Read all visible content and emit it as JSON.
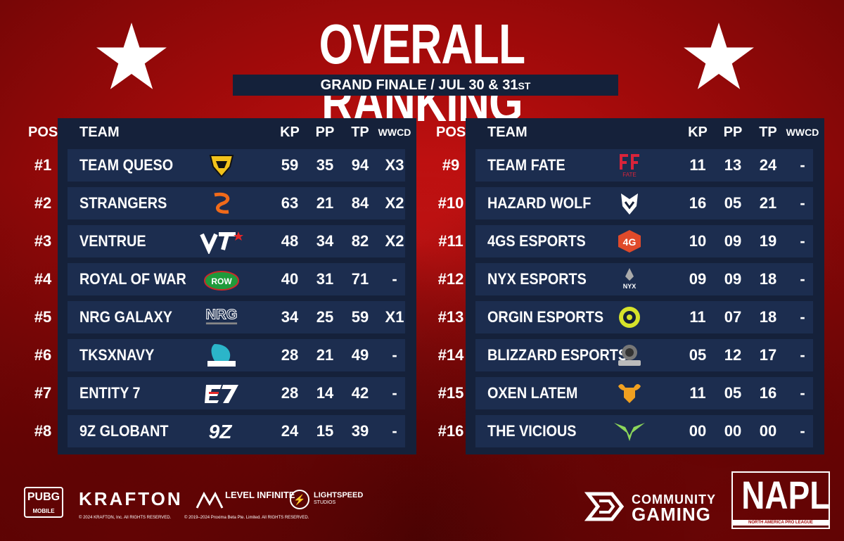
{
  "header": {
    "title": "OVERALL RANKING",
    "subtitle_main": "GRAND FINALE / JUL 30 & 31",
    "subtitle_sup": "ST"
  },
  "columns": {
    "pos": "POS",
    "team": "TEAM",
    "kp": "KP",
    "pp": "PP",
    "tp": "TP",
    "wwcd": "WWCD"
  },
  "left_table": [
    {
      "pos": "#1",
      "team": "TEAM QUESO",
      "logo": "team-queso-logo",
      "kp": "59",
      "pp": "35",
      "tp": "94",
      "wwcd": "X3"
    },
    {
      "pos": "#2",
      "team": "STRANGERS",
      "logo": "strangers-logo",
      "kp": "63",
      "pp": "21",
      "tp": "84",
      "wwcd": "X2"
    },
    {
      "pos": "#3",
      "team": "VENTRUE",
      "logo": "ventrue-logo",
      "kp": "48",
      "pp": "34",
      "tp": "82",
      "wwcd": "X2"
    },
    {
      "pos": "#4",
      "team": "ROYAL OF WAR",
      "logo": "royal-of-war-logo",
      "kp": "40",
      "pp": "31",
      "tp": "71",
      "wwcd": "-"
    },
    {
      "pos": "#5",
      "team": "NRG GALAXY",
      "logo": "nrg-galaxy-logo",
      "kp": "34",
      "pp": "25",
      "tp": "59",
      "wwcd": "X1"
    },
    {
      "pos": "#6",
      "team": "TKSXNAVY",
      "logo": "tksxnavy-logo",
      "kp": "28",
      "pp": "21",
      "tp": "49",
      "wwcd": "-"
    },
    {
      "pos": "#7",
      "team": "ENTITY 7",
      "logo": "entity-7-logo",
      "kp": "28",
      "pp": "14",
      "tp": "42",
      "wwcd": "-"
    },
    {
      "pos": "#8",
      "team": "9Z GLOBANT",
      "logo": "9z-globant-logo",
      "kp": "24",
      "pp": "15",
      "tp": "39",
      "wwcd": "-"
    }
  ],
  "right_table": [
    {
      "pos": "#9",
      "team": "TEAM FATE",
      "logo": "team-fate-logo",
      "kp": "11",
      "pp": "13",
      "tp": "24",
      "wwcd": "-"
    },
    {
      "pos": "#10",
      "team": "HAZARD WOLF",
      "logo": "hazard-wolf-logo",
      "kp": "16",
      "pp": "05",
      "tp": "21",
      "wwcd": "-"
    },
    {
      "pos": "#11",
      "team": "4GS ESPORTS",
      "logo": "4gs-esports-logo",
      "kp": "10",
      "pp": "09",
      "tp": "19",
      "wwcd": "-"
    },
    {
      "pos": "#12",
      "team": "NYX ESPORTS",
      "logo": "nyx-esports-logo",
      "kp": "09",
      "pp": "09",
      "tp": "18",
      "wwcd": "-"
    },
    {
      "pos": "#13",
      "team": "ORGIN ESPORTS",
      "logo": "orgin-esports-logo",
      "kp": "11",
      "pp": "07",
      "tp": "18",
      "wwcd": "-"
    },
    {
      "pos": "#14",
      "team": "BLIZZARD ESPORTS",
      "logo": "blizzard-esports-logo",
      "kp": "05",
      "pp": "12",
      "tp": "17",
      "wwcd": "-"
    },
    {
      "pos": "#15",
      "team": "OXEN LATEM",
      "logo": "oxen-latem-logo",
      "kp": "11",
      "pp": "05",
      "tp": "16",
      "wwcd": "-"
    },
    {
      "pos": "#16",
      "team": "THE VICIOUS",
      "logo": "the-vicious-logo",
      "kp": "00",
      "pp": "00",
      "tp": "00",
      "wwcd": "-"
    }
  ],
  "footer": {
    "pubg_main": "PUBG",
    "pubg_sub": "MOBILE",
    "krafton": "KRAFTON",
    "level_infinite": "LEVEL INFINITE",
    "lightspeed": "LIGHTSPEED",
    "lightspeed_sub": "STUDIOS",
    "copyright_krafton": "© 2024 KRAFTON, Inc. All RIGHTS RESERVED.",
    "copyright_proxima": "© 2019–2024 Proxima Beta Pte. Limited. All RIGHTS RESERVED.",
    "community_line1": "COMMUNITY",
    "community_line2": "GAMING",
    "napl": "NAPL",
    "napl_sub": "NORTH AMERICA PRO LEAGUE"
  },
  "colors": {
    "background_red": "#c41212",
    "panel_navy": "#15213a",
    "row_navy": "#1c2d4f",
    "text": "#ffffff"
  }
}
